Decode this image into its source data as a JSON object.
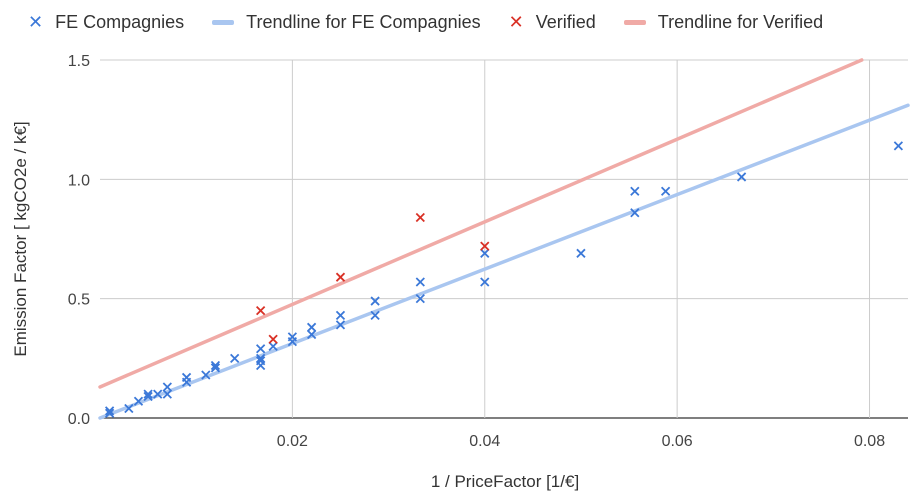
{
  "chart_data": {
    "type": "scatter",
    "xlabel": "1 / PriceFactor [1/€]",
    "ylabel": "Emission Factor [ kgCO2e / k€]",
    "xlim": [
      0.0,
      0.084
    ],
    "ylim": [
      0.0,
      1.5
    ],
    "x_ticks": [
      "0.02",
      "0.04",
      "0.06",
      "0.08"
    ],
    "y_ticks": [
      "0.0",
      "0.5",
      "1.0",
      "1.5"
    ],
    "x_tick_values": [
      0.02,
      0.04,
      0.06,
      0.08
    ],
    "y_tick_values": [
      0.0,
      0.5,
      1.0,
      1.5
    ],
    "grid": true,
    "legend_position": "top",
    "legend": [
      {
        "label": "FE Compagnies",
        "kind": "marker",
        "color": "#3b78d8"
      },
      {
        "label": "Trendline for FE Compagnies",
        "kind": "line",
        "color": "#a9c6f0"
      },
      {
        "label": "Verified",
        "kind": "marker",
        "color": "#d93025"
      },
      {
        "label": "Trendline for Verified",
        "kind": "line",
        "color": "#f0aaa6"
      }
    ],
    "series": [
      {
        "name": "FE Compagnies",
        "color": "#3b78d8",
        "points": [
          [
            0.001,
            0.03
          ],
          [
            0.001,
            0.02
          ],
          [
            0.003,
            0.04
          ],
          [
            0.004,
            0.07
          ],
          [
            0.005,
            0.09
          ],
          [
            0.005,
            0.1
          ],
          [
            0.006,
            0.1
          ],
          [
            0.007,
            0.13
          ],
          [
            0.007,
            0.1
          ],
          [
            0.009,
            0.17
          ],
          [
            0.009,
            0.15
          ],
          [
            0.011,
            0.18
          ],
          [
            0.012,
            0.21
          ],
          [
            0.012,
            0.22
          ],
          [
            0.014,
            0.25
          ],
          [
            0.0167,
            0.29
          ],
          [
            0.0167,
            0.25
          ],
          [
            0.0167,
            0.24
          ],
          [
            0.0167,
            0.22
          ],
          [
            0.018,
            0.3
          ],
          [
            0.02,
            0.34
          ],
          [
            0.02,
            0.32
          ],
          [
            0.022,
            0.38
          ],
          [
            0.022,
            0.35
          ],
          [
            0.025,
            0.43
          ],
          [
            0.025,
            0.39
          ],
          [
            0.0286,
            0.49
          ],
          [
            0.0286,
            0.43
          ],
          [
            0.0333,
            0.57
          ],
          [
            0.0333,
            0.5
          ],
          [
            0.04,
            0.69
          ],
          [
            0.04,
            0.57
          ],
          [
            0.05,
            0.69
          ],
          [
            0.0556,
            0.95
          ],
          [
            0.0556,
            0.86
          ],
          [
            0.0588,
            0.95
          ],
          [
            0.0667,
            1.01
          ],
          [
            0.083,
            1.14
          ]
        ]
      },
      {
        "name": "Verified",
        "color": "#d93025",
        "points": [
          [
            0.0167,
            0.45
          ],
          [
            0.018,
            0.33
          ],
          [
            0.025,
            0.59
          ],
          [
            0.0333,
            0.84
          ],
          [
            0.04,
            0.72
          ]
        ]
      }
    ],
    "trendlines": [
      {
        "name": "Trendline for FE Compagnies",
        "color": "#a9c6f0",
        "intercept": 0.0,
        "slope": 15.6
      },
      {
        "name": "Trendline for Verified",
        "color": "#f0aaa6",
        "intercept": 0.13,
        "slope": 17.3
      }
    ]
  }
}
